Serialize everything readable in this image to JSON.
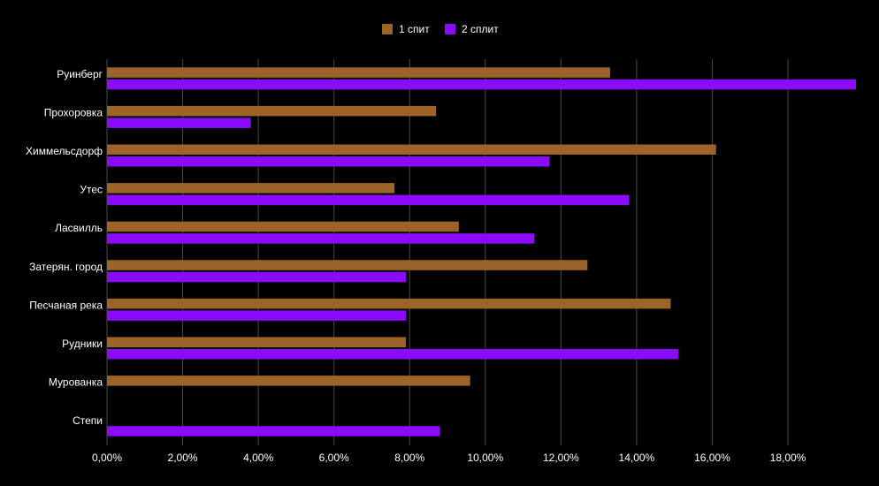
{
  "chart_data": {
    "type": "bar",
    "orientation": "horizontal",
    "categories": [
      "Руинберг",
      "Прохоровка",
      "Химмельсдорф",
      "Утес",
      "Ласвилль",
      "Затерян. город",
      "Песчаная река",
      "Рудники",
      "Мурованка",
      "Степи"
    ],
    "series": [
      {
        "name": "1 спит",
        "color": "#9c6428",
        "values": [
          13.3,
          8.7,
          16.1,
          7.6,
          9.3,
          12.7,
          14.9,
          7.9,
          9.6,
          0
        ]
      },
      {
        "name": "2 сплит",
        "color": "#8a0cfa",
        "values": [
          19.8,
          3.8,
          11.7,
          13.8,
          11.3,
          7.9,
          7.9,
          15.1,
          0,
          8.8
        ]
      }
    ],
    "xticks": [
      "0,00%",
      "2,00%",
      "4,00%",
      "6,00%",
      "8,00%",
      "10,00%",
      "12,00%",
      "14,00%",
      "16,00%",
      "18,00%"
    ],
    "xlim": [
      0,
      19.8
    ],
    "grid": true,
    "legend_position": "top-center",
    "background": "#000000",
    "grid_color": "#4a4a4a"
  }
}
